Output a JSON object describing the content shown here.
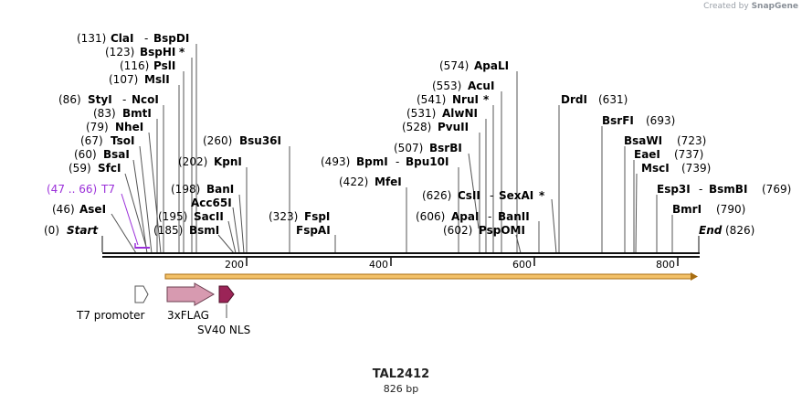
{
  "credit": {
    "prefix": "Created by",
    "brand": "SnapGene"
  },
  "plasmid": {
    "name": "TAL2412",
    "size_label": "826 bp",
    "length": 826
  },
  "colors": {
    "ruler": "#000000",
    "orf_fill": "#f3c168",
    "orf_stroke": "#a86d12",
    "t7": "#9b30d9",
    "flag": "#d79ab0",
    "nls": "#9b2457",
    "promoter": "#ffffff"
  },
  "ruler": {
    "ticks": [
      "200",
      "400",
      "600",
      "800"
    ]
  },
  "ends": {
    "start_pos": "(0)",
    "start": "Start",
    "end": "End",
    "end_pos": "(826)"
  },
  "sites": [
    {
      "pos": "(131)",
      "name": "ClaI",
      "alias": "BspDI",
      "star": ""
    },
    {
      "pos": "(123)",
      "name": "BspHI",
      "alias": "",
      "star": "*"
    },
    {
      "pos": "(116)",
      "name": "PslI",
      "alias": "",
      "star": ""
    },
    {
      "pos": "(107)",
      "name": "MslI",
      "alias": "",
      "star": ""
    },
    {
      "pos": "(86)",
      "name": "StyI",
      "alias": "NcoI",
      "star": ""
    },
    {
      "pos": "(83)",
      "name": "BmtI",
      "alias": "",
      "star": ""
    },
    {
      "pos": "(79)",
      "name": "NheI",
      "alias": "",
      "star": ""
    },
    {
      "pos": "(67)",
      "name": "TsoI",
      "alias": "",
      "star": ""
    },
    {
      "pos": "(60)",
      "name": "BsaI",
      "alias": "",
      "star": ""
    },
    {
      "pos": "(59)",
      "name": "SfcI",
      "alias": "",
      "star": ""
    },
    {
      "pos": "(46)",
      "name": "AseI",
      "alias": "",
      "star": ""
    },
    {
      "pos": "(260)",
      "name": "Bsu36I",
      "alias": "",
      "star": ""
    },
    {
      "pos": "(202)",
      "name": "KpnI",
      "alias": "",
      "star": ""
    },
    {
      "pos": "(198)",
      "name": "BanI",
      "alias": "",
      "star": ""
    },
    {
      "pos": "",
      "name": "Acc65I",
      "alias": "",
      "star": ""
    },
    {
      "pos": "(195)",
      "name": "SacII",
      "alias": "",
      "star": ""
    },
    {
      "pos": "(185)",
      "name": "BsmI",
      "alias": "",
      "star": ""
    },
    {
      "pos": "(323)",
      "name": "FspI",
      "alias": "",
      "star": ""
    },
    {
      "pos": "",
      "name": "FspAI",
      "alias": "",
      "star": ""
    },
    {
      "pos": "(574)",
      "name": "ApaLI",
      "alias": "",
      "star": ""
    },
    {
      "pos": "(553)",
      "name": "AcuI",
      "alias": "",
      "star": ""
    },
    {
      "pos": "(541)",
      "name": "NruI",
      "alias": "",
      "star": "*"
    },
    {
      "pos": "(531)",
      "name": "AlwNI",
      "alias": "",
      "star": ""
    },
    {
      "pos": "(528)",
      "name": "PvuII",
      "alias": "",
      "star": ""
    },
    {
      "pos": "(507)",
      "name": "BsrBI",
      "alias": "",
      "star": ""
    },
    {
      "pos": "(493)",
      "name": "BpmI",
      "alias": "Bpu10I",
      "star": ""
    },
    {
      "pos": "(422)",
      "name": "MfeI",
      "alias": "",
      "star": ""
    },
    {
      "pos": "(626)",
      "name": "CsII",
      "alias": "SexAI",
      "star": "*"
    },
    {
      "pos": "(606)",
      "name": "ApaI",
      "alias": "BanII",
      "star": ""
    },
    {
      "pos": "(602)",
      "name": "PspOMI",
      "alias": "",
      "star": ""
    },
    {
      "pos": "(631)",
      "name": "DrdI",
      "alias": "",
      "star": ""
    },
    {
      "pos": "(693)",
      "name": "BsrFI",
      "alias": "",
      "star": ""
    },
    {
      "pos": "(723)",
      "name": "BsaWI",
      "alias": "",
      "star": ""
    },
    {
      "pos": "(737)",
      "name": "EaeI",
      "alias": "",
      "star": ""
    },
    {
      "pos": "(739)",
      "name": "MscI",
      "alias": "",
      "star": ""
    },
    {
      "pos": "(769)",
      "name": "Esp3I",
      "alias": "BsmBI",
      "star": ""
    },
    {
      "pos": "(790)",
      "name": "BmrI",
      "alias": "",
      "star": ""
    }
  ],
  "primer": {
    "range": "(47 .. 66)",
    "name": "T7"
  },
  "features": {
    "promoter": "T7 promoter",
    "flag": "3xFLAG",
    "nls": "SV40 NLS"
  }
}
